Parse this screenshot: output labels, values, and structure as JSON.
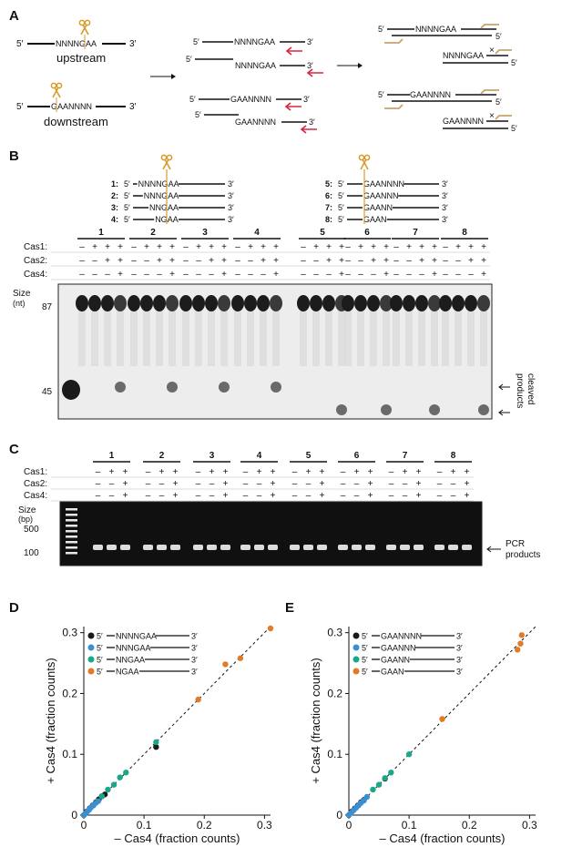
{
  "panelA": {
    "label": "A",
    "top": {
      "five": "5′",
      "seq": "NNNNGAA",
      "three": "3′",
      "caption": "upstream"
    },
    "bottom": {
      "five": "5′",
      "seq": "GAANNNN",
      "three": "3′",
      "caption": "downstream"
    },
    "mid_top": [
      {
        "five": "5′",
        "seq": "NNNNGAA",
        "three": "3′"
      },
      {
        "five": "5′",
        "seq": "",
        "three": ""
      },
      {
        "five": "",
        "seq": "NNNNGAA",
        "three": "3′"
      }
    ],
    "mid_bottom": [
      {
        "five": "5′",
        "seq": "GAANNNN",
        "three": "3′"
      },
      {
        "five": "5′",
        "seq": "",
        "three": ""
      },
      {
        "five": "",
        "seq": "GAANNNN",
        "three": "3′"
      }
    ],
    "right_top": [
      {
        "five": "5′",
        "seq": "NNNNGAA",
        "three": ""
      },
      {
        "five": "",
        "seq": "",
        "three": "5′"
      },
      {
        "five": "",
        "seq": "NNNNGAA",
        "three": "5′",
        "x": "×"
      }
    ],
    "right_bottom": [
      {
        "five": "5′",
        "seq": "GAANNNN",
        "three": ""
      },
      {
        "five": "",
        "seq": "",
        "three": "5′"
      },
      {
        "five": "",
        "seq": "GAANNNN",
        "three": "5′",
        "x": "×"
      }
    ]
  },
  "panelB": {
    "label": "B",
    "substrates_left": [
      {
        "num": "1:",
        "five": "5′",
        "seq": "NNNNGAA",
        "three": "3′"
      },
      {
        "num": "2:",
        "five": "5′",
        "seq": "NNNGAA",
        "three": "3′"
      },
      {
        "num": "3:",
        "five": "5′",
        "seq": "NNGAA",
        "three": "3′"
      },
      {
        "num": "4:",
        "five": "5′",
        "seq": "NGAA",
        "three": "3′"
      }
    ],
    "substrates_right": [
      {
        "num": "5:",
        "five": "5′",
        "seq": "GAANNNN",
        "three": "3′"
      },
      {
        "num": "6:",
        "five": "5′",
        "seq": "GAANNN",
        "three": "3′"
      },
      {
        "num": "7:",
        "five": "5′",
        "seq": "GAANN",
        "three": "3′"
      },
      {
        "num": "8:",
        "five": "5′",
        "seq": "GAAN",
        "three": "3′"
      }
    ],
    "groups": [
      "1",
      "2",
      "3",
      "4",
      "5",
      "6",
      "7",
      "8"
    ],
    "row_labels": [
      "Cas1:",
      "Cas2:",
      "Cas4:"
    ],
    "lane_pattern": [
      [
        "–",
        "+",
        "+",
        "+"
      ],
      [
        "–",
        "–",
        "+",
        "+"
      ],
      [
        "–",
        "–",
        "–",
        "+"
      ]
    ],
    "size_label": "Size",
    "size_unit": "(nt)",
    "markers": [
      "87",
      "45"
    ],
    "annotation": [
      "cleaved",
      "products"
    ]
  },
  "panelC": {
    "label": "C",
    "groups": [
      "1",
      "2",
      "3",
      "4",
      "5",
      "6",
      "7",
      "8"
    ],
    "row_labels": [
      "Cas1:",
      "Cas2:",
      "Cas4:"
    ],
    "lane_pattern": [
      [
        "–",
        "+",
        "+"
      ],
      [
        "–",
        "–",
        "+"
      ],
      [
        "–",
        "–",
        "+"
      ]
    ],
    "size_label": "Size",
    "size_unit": "(bp)",
    "markers": [
      "500",
      "100"
    ],
    "annotation": [
      "PCR",
      "products"
    ]
  },
  "chart_data": [
    {
      "panel": "D",
      "type": "scatter",
      "xlabel": "– Cas4 (fraction counts)",
      "ylabel": "+ Cas4 (fraction counts)",
      "xlim": [
        0,
        0.31
      ],
      "ylim": [
        0,
        0.31
      ],
      "xticks": [
        "0",
        "0.1",
        "0.2",
        "0.3"
      ],
      "yticks": [
        "0",
        "0.1",
        "0.2",
        "0.3"
      ],
      "reference_line": "y = x (dashed)",
      "series": [
        {
          "name": "5′NNNNGAA3′",
          "color": "#1a1a1a",
          "x": [
            0.0,
            0.005,
            0.01,
            0.015,
            0.02,
            0.025,
            0.03,
            0.035,
            0.12
          ],
          "y": [
            0.0,
            0.006,
            0.011,
            0.016,
            0.021,
            0.026,
            0.031,
            0.034,
            0.112
          ]
        },
        {
          "name": "5′NNNGAA3′",
          "color": "#3a8fd1",
          "x": [
            0.0,
            0.003,
            0.006,
            0.009,
            0.012,
            0.016,
            0.02,
            0.024
          ],
          "y": [
            0.0,
            0.003,
            0.006,
            0.009,
            0.013,
            0.016,
            0.02,
            0.023
          ]
        },
        {
          "name": "5′NNGAA3′",
          "color": "#1aa88a",
          "x": [
            0.03,
            0.04,
            0.05,
            0.06,
            0.07,
            0.12
          ],
          "y": [
            0.031,
            0.042,
            0.05,
            0.062,
            0.07,
            0.12
          ]
        },
        {
          "name": "5′NGAA3′",
          "color": "#e07b27",
          "x": [
            0.19,
            0.235,
            0.26,
            0.31
          ],
          "y": [
            0.19,
            0.248,
            0.258,
            0.307
          ]
        }
      ]
    },
    {
      "panel": "E",
      "type": "scatter",
      "xlabel": "– Cas4 (fraction counts)",
      "ylabel": "+ Cas4 (fraction counts)",
      "xlim": [
        0,
        0.31
      ],
      "ylim": [
        0,
        0.31
      ],
      "xticks": [
        "0",
        "0.1",
        "0.2",
        "0.3"
      ],
      "yticks": [
        "0",
        "0.1",
        "0.2",
        "0.3"
      ],
      "reference_line": "y = x (dashed)",
      "series": [
        {
          "name": "5′GAANNNN3′",
          "color": "#1a1a1a",
          "x": [
            0.0,
            0.005,
            0.01,
            0.015,
            0.02,
            0.025,
            0.06
          ],
          "y": [
            0.0,
            0.006,
            0.011,
            0.016,
            0.021,
            0.025,
            0.06
          ]
        },
        {
          "name": "5′GAANNN3′",
          "color": "#3a8fd1",
          "x": [
            0.0,
            0.004,
            0.008,
            0.012,
            0.016,
            0.02,
            0.025,
            0.03
          ],
          "y": [
            0.0,
            0.004,
            0.008,
            0.012,
            0.016,
            0.02,
            0.024,
            0.03
          ]
        },
        {
          "name": "5′GAANN3′",
          "color": "#1aa88a",
          "x": [
            0.04,
            0.05,
            0.06,
            0.07,
            0.1
          ],
          "y": [
            0.042,
            0.05,
            0.061,
            0.07,
            0.1
          ]
        },
        {
          "name": "5′GAAN3′",
          "color": "#e07b27",
          "x": [
            0.155,
            0.28,
            0.285,
            0.287
          ],
          "y": [
            0.158,
            0.272,
            0.282,
            0.296
          ]
        }
      ]
    }
  ]
}
